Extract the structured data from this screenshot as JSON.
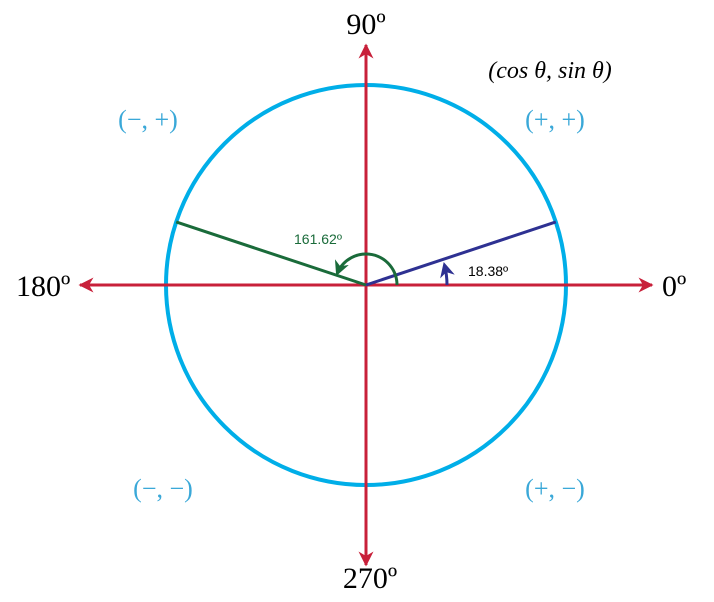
{
  "axes": {
    "deg0": "0º",
    "deg90": "90º",
    "deg180": "180º",
    "deg270": "270º"
  },
  "coordinate_label": "(cos θ, sin θ)",
  "quadrants": {
    "q1": "(+, +)",
    "q2": "(−, +)",
    "q3": "(−, −)",
    "q4": "(+, −)"
  },
  "angles": {
    "reference": {
      "label": "18.38º",
      "degrees": 18.38
    },
    "terminal": {
      "label": "161.62º",
      "degrees": 161.62
    }
  },
  "colors": {
    "circle": "#00aee8",
    "axes": "#c8203a",
    "reference": "#2e3192",
    "terminal": "#1a6b3a",
    "quadrant_text": "#3aa8d8"
  }
}
